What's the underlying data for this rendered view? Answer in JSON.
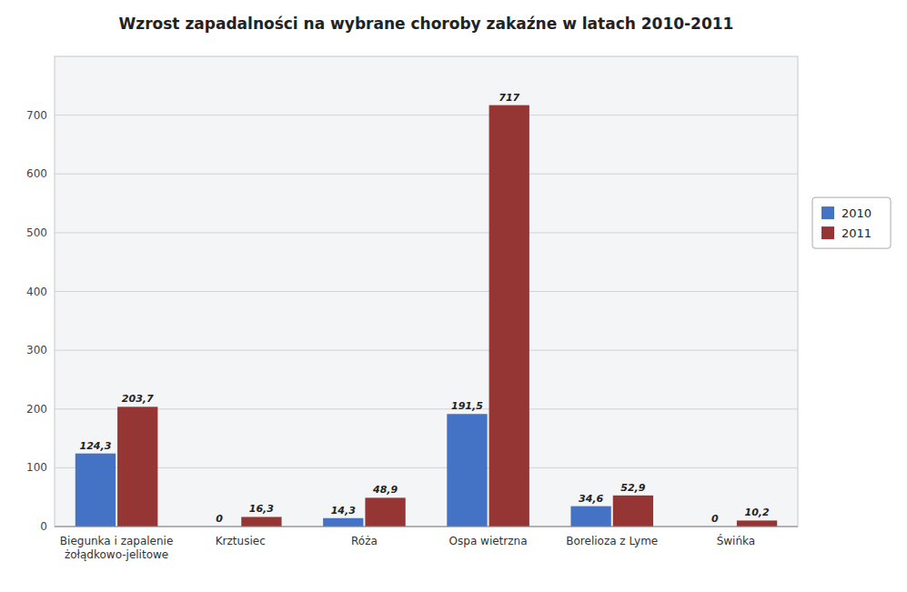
{
  "chart_data": {
    "type": "bar",
    "title": "Wzrost zapadalności na wybrane choroby zakaźne w latach 2010-2011",
    "categories": [
      "Biegunka i zapalenie\nżołądkowo-jelitowe",
      "Krztusiec",
      "Róża",
      "Ospa wietrzna",
      "Borelioza z Lyme",
      "Świńka"
    ],
    "series": [
      {
        "name": "2010",
        "color": "#4472C4",
        "values": [
          124.3,
          0,
          14.3,
          191.5,
          34.6,
          0
        ],
        "value_labels": [
          "124,3",
          "0",
          "14,3",
          "191,5",
          "34,6",
          "0"
        ]
      },
      {
        "name": "2011",
        "color": "#963634",
        "values": [
          203.7,
          16.3,
          48.9,
          717,
          52.9,
          10.2
        ],
        "value_labels": [
          "203,7",
          "16,3",
          "48,9",
          "717",
          "52,9",
          "10,2"
        ]
      }
    ],
    "ylim": [
      0,
      800
    ],
    "yticks": [
      0,
      100,
      200,
      300,
      400,
      500,
      600,
      700
    ],
    "grid": true,
    "legend": "right",
    "data_labels": true
  }
}
